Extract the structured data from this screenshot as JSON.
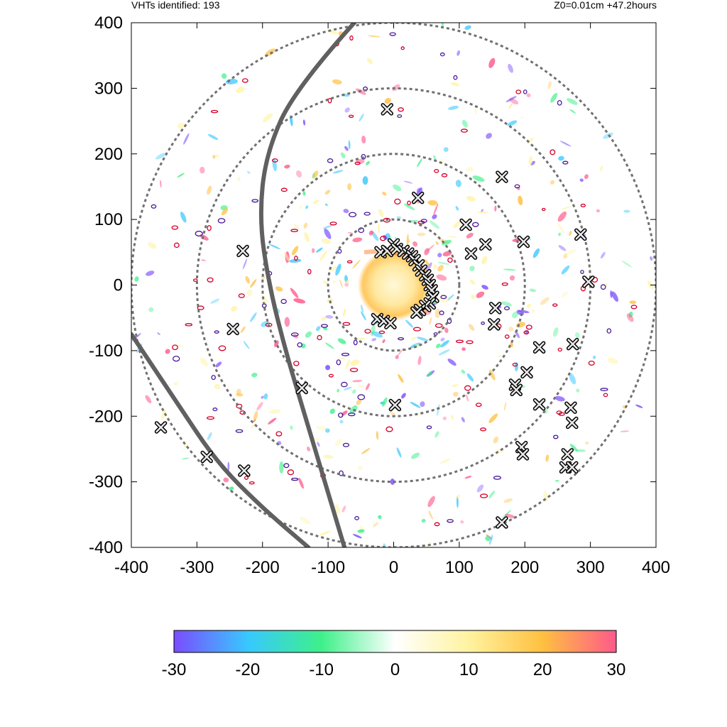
{
  "header": {
    "left_text": "VHTs identified: 193",
    "right_text": "Z0=0.01cm  +47.2hours"
  },
  "chart_data": {
    "type": "heatmap",
    "xlim": [
      -400,
      400
    ],
    "ylim": [
      -400,
      400
    ],
    "x_ticks": [
      -400,
      -300,
      -200,
      -100,
      0,
      100,
      200,
      300,
      400
    ],
    "y_ticks": [
      -400,
      -300,
      -200,
      -100,
      0,
      100,
      200,
      300,
      400
    ],
    "range_rings": [
      100,
      200,
      300,
      400
    ],
    "colorbar": {
      "range": [
        -30,
        30
      ],
      "ticks": [
        -30,
        -20,
        -10,
        0,
        10,
        20,
        30
      ],
      "colors": [
        "#7a4cff",
        "#38c8ff",
        "#3ef08a",
        "#ffffff",
        "#fff3a0",
        "#ffc040",
        "#ff5a8a"
      ]
    },
    "vht_markers": [
      [
        -10,
        268
      ],
      [
        165,
        165
      ],
      [
        37,
        133
      ],
      [
        110,
        92
      ],
      [
        140,
        62
      ],
      [
        198,
        66
      ],
      [
        285,
        77
      ],
      [
        118,
        48
      ],
      [
        -230,
        52
      ],
      [
        297,
        5
      ],
      [
        155,
        -35
      ],
      [
        153,
        -60
      ],
      [
        -245,
        -67
      ],
      [
        222,
        -95
      ],
      [
        273,
        -90
      ],
      [
        203,
        -133
      ],
      [
        185,
        -152
      ],
      [
        187,
        -160
      ],
      [
        -140,
        -157
      ],
      [
        2,
        -183
      ],
      [
        222,
        -182
      ],
      [
        270,
        -187
      ],
      [
        272,
        -210
      ],
      [
        195,
        -247
      ],
      [
        197,
        -258
      ],
      [
        265,
        -258
      ],
      [
        262,
        -278
      ],
      [
        272,
        -278
      ],
      [
        -355,
        -217
      ],
      [
        -285,
        -262
      ],
      [
        -228,
        -283
      ],
      [
        165,
        -362
      ],
      [
        -20,
        50
      ],
      [
        -10,
        52
      ],
      [
        0,
        62
      ],
      [
        5,
        55
      ],
      [
        15,
        52
      ],
      [
        22,
        48
      ],
      [
        28,
        44
      ],
      [
        32,
        38
      ],
      [
        38,
        30
      ],
      [
        42,
        22
      ],
      [
        48,
        15
      ],
      [
        52,
        8
      ],
      [
        55,
        0
      ],
      [
        58,
        -8
      ],
      [
        60,
        -18
      ],
      [
        55,
        -28
      ],
      [
        48,
        -32
      ],
      [
        40,
        -38
      ],
      [
        35,
        -42
      ],
      [
        -25,
        -52
      ],
      [
        -15,
        -55
      ],
      [
        -5,
        -58
      ]
    ],
    "hodograph_paths": [
      [
        [
          -60,
          400
        ],
        [
          -150,
          300
        ],
        [
          -195,
          200
        ],
        [
          -205,
          100
        ],
        [
          -190,
          0
        ],
        [
          -165,
          -100
        ],
        [
          -135,
          -200
        ],
        [
          -105,
          -300
        ],
        [
          -75,
          -400
        ]
      ],
      [
        [
          -400,
          -75
        ],
        [
          -330,
          -180
        ],
        [
          -270,
          -270
        ],
        [
          -200,
          -340
        ],
        [
          -130,
          -400
        ]
      ]
    ]
  }
}
